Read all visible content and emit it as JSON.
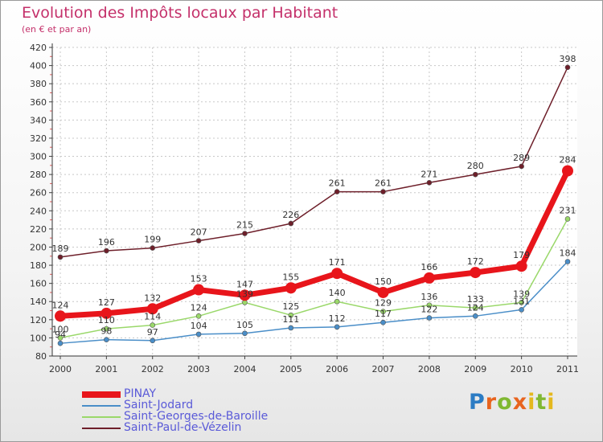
{
  "title": "Evolution des Impôts locaux par Habitant",
  "subtitle": "(en € et par an)",
  "logo": {
    "p": "P",
    "r": "r",
    "o": "o",
    "x": "x",
    "i": "i",
    "t": "t",
    "i2": "i"
  },
  "chart_data": {
    "type": "line",
    "title": "Evolution des Impôts locaux par Habitant",
    "ylabel": "(en € et par an)",
    "xlabel": "",
    "ylim": [
      80,
      420
    ],
    "yticks": [
      "80",
      "100",
      "120",
      "140",
      "160",
      "180",
      "200",
      "220",
      "240",
      "260",
      "280",
      "300",
      "320",
      "340",
      "360",
      "380",
      "400",
      "420"
    ],
    "categories": [
      "2000",
      "2001",
      "2002",
      "2003",
      "2004",
      "2005",
      "2006",
      "2007",
      "2008",
      "2009",
      "2010",
      "2011"
    ],
    "grid": true,
    "series": [
      {
        "name": "Saint-Paul-de-Vézelin",
        "color": "#6e1f2a",
        "width": 1.5,
        "radius": 3,
        "values": [
          189,
          196,
          199,
          207,
          215,
          226,
          261,
          261,
          271,
          280,
          289,
          398
        ]
      },
      {
        "name": "Saint-Georges-de-Baroille",
        "color": "#9ad86a",
        "width": 1.5,
        "radius": 3,
        "values": [
          100,
          110,
          114,
          124,
          139,
          125,
          140,
          129,
          136,
          133,
          139,
          231
        ]
      },
      {
        "name": "Saint-Jodard",
        "color": "#4a8ec8",
        "width": 1.5,
        "radius": 3,
        "values": [
          94,
          98,
          97,
          104,
          105,
          111,
          112,
          117,
          122,
          124,
          131,
          184
        ]
      },
      {
        "name": "PINAY",
        "color": "#e8151b",
        "width": 7,
        "radius": 7,
        "values": [
          124,
          127,
          132,
          153,
          147,
          155,
          171,
          150,
          166,
          172,
          179,
          284
        ]
      }
    ],
    "legend": [
      {
        "name": "PINAY",
        "color": "#e8151b",
        "width": 8
      },
      {
        "name": "Saint-Jodard",
        "color": "#4a8ec8",
        "width": 2
      },
      {
        "name": "Saint-Georges-de-Baroille",
        "color": "#9ad86a",
        "width": 2
      },
      {
        "name": "Saint-Paul-de-Vézelin",
        "color": "#6e1f2a",
        "width": 2
      }
    ]
  }
}
